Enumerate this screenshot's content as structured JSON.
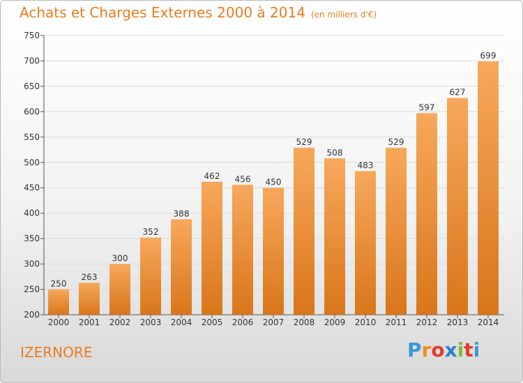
{
  "header": {
    "title": "Achats et Charges Externes 2000 à 2014",
    "subtitle": "(en milliers d'€)"
  },
  "footer": {
    "commune": "IZERNORE",
    "logo_text": "Proxiti"
  },
  "colors": {
    "accent": "#e97d1e",
    "bar_top": "#f7a85b",
    "bar_bottom": "#d9761a",
    "logo": [
      "#3a9ad9",
      "#f08a1c",
      "#e53b2c",
      "#2f7fd0",
      "#7cbf3a",
      "#e53b2c",
      "#3a9ad9"
    ]
  },
  "chart_data": {
    "type": "bar",
    "title": "Achats et Charges Externes 2000 à 2014",
    "subtitle": "(en milliers d'€)",
    "categories": [
      "2000",
      "2001",
      "2002",
      "2003",
      "2004",
      "2005",
      "2006",
      "2007",
      "2008",
      "2009",
      "2010",
      "2011",
      "2012",
      "2013",
      "2014"
    ],
    "values": [
      250,
      263,
      300,
      352,
      388,
      462,
      456,
      450,
      529,
      508,
      483,
      529,
      597,
      627,
      699
    ],
    "ylim": [
      200,
      750
    ],
    "yticks": [
      200,
      250,
      300,
      350,
      400,
      450,
      500,
      550,
      600,
      650,
      700,
      750
    ],
    "grid": true,
    "data_labels": true
  }
}
